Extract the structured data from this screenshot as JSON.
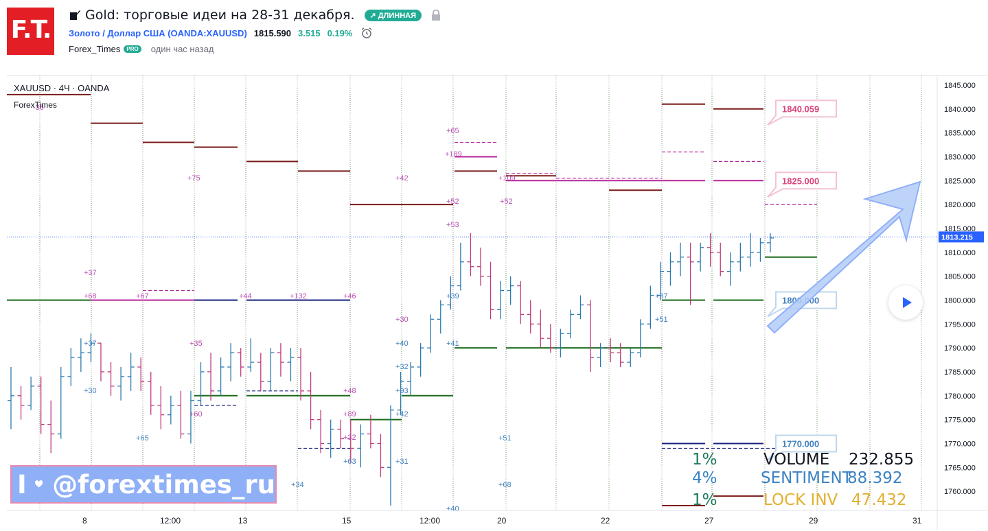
{
  "header": {
    "logo_text": "F.T.",
    "title": "Gold: торговые идеи на 28-31 декабря.",
    "badge": "↗ ДЛИННАЯ",
    "symbol_link": "Золото / Доллар США (OANDA:XAUUSD)",
    "price": "1815.590",
    "change": "3.515",
    "change_pct": "0.19%",
    "author": "Forex_Times",
    "author_badge": "PRO",
    "published": "один час назад"
  },
  "chart_data": {
    "type": "candlestick",
    "symbol_label": "XAUUSD · 4Ч · OANDA",
    "indicator_label": "ForexTimes",
    "x_tick_labels": [
      "8",
      "12:00",
      "13",
      "15",
      "12:00",
      "20",
      "22",
      "27",
      "29",
      "31"
    ],
    "y_ticks": [
      1760,
      1765,
      1770,
      1775,
      1780,
      1785,
      1790,
      1795,
      1800,
      1805,
      1810,
      1815,
      1820,
      1825,
      1830,
      1835,
      1840,
      1845
    ],
    "ylim": [
      1756,
      1847
    ],
    "last_price": "1813.215",
    "callouts": [
      "1840.059",
      "1825.000",
      "1800.000",
      "1770.000"
    ],
    "annotations_magenta": [
      "-36",
      "+75",
      "+42",
      "+65",
      "+189",
      "+109",
      "+52",
      "+52",
      "+53",
      "+37",
      "+68",
      "+67",
      "+44",
      "+132",
      "+46",
      "+30",
      "+35",
      "+48",
      "+89",
      "+32",
      "+60"
    ],
    "annotations_blue": [
      "+39",
      "+37",
      "+30",
      "+65",
      "+40",
      "+32",
      "+41",
      "+93",
      "+42",
      "+63",
      "+31",
      "+34",
      "+51",
      "+68",
      "+40",
      "+37",
      "+51"
    ],
    "candles": [
      [
        1779,
        1786,
        1773,
        1780
      ],
      [
        1780,
        1782,
        1775,
        1778
      ],
      [
        1778,
        1784,
        1777,
        1782
      ],
      [
        1782,
        1784,
        1772,
        1774
      ],
      [
        1774,
        1779,
        1768,
        1772
      ],
      [
        1772,
        1786,
        1771,
        1784
      ],
      [
        1784,
        1790,
        1782,
        1788
      ],
      [
        1788,
        1792,
        1785,
        1789
      ],
      [
        1789,
        1793,
        1787,
        1791
      ],
      [
        1791,
        1791,
        1783,
        1785
      ],
      [
        1785,
        1787,
        1780,
        1782
      ],
      [
        1782,
        1786,
        1779,
        1784
      ],
      [
        1784,
        1789,
        1781,
        1786
      ],
      [
        1786,
        1788,
        1781,
        1783
      ],
      [
        1783,
        1785,
        1776,
        1778
      ],
      [
        1778,
        1782,
        1773,
        1776
      ],
      [
        1776,
        1780,
        1774,
        1778
      ],
      [
        1778,
        1781,
        1771,
        1772
      ],
      [
        1772,
        1781,
        1770,
        1779
      ],
      [
        1779,
        1787,
        1778,
        1785
      ],
      [
        1785,
        1789,
        1779,
        1781
      ],
      [
        1781,
        1788,
        1780,
        1786
      ],
      [
        1786,
        1791,
        1783,
        1789
      ],
      [
        1789,
        1790,
        1784,
        1786
      ],
      [
        1786,
        1792,
        1785,
        1787
      ],
      [
        1787,
        1789,
        1781,
        1783
      ],
      [
        1783,
        1790,
        1781,
        1789
      ],
      [
        1789,
        1791,
        1784,
        1787
      ],
      [
        1787,
        1790,
        1783,
        1788
      ],
      [
        1788,
        1790,
        1779,
        1781
      ],
      [
        1781,
        1785,
        1773,
        1775
      ],
      [
        1775,
        1777,
        1768,
        1770
      ],
      [
        1770,
        1775,
        1767,
        1773
      ],
      [
        1773,
        1775,
        1769,
        1771
      ],
      [
        1771,
        1775,
        1766,
        1769
      ],
      [
        1769,
        1774,
        1765,
        1772
      ],
      [
        1772,
        1776,
        1769,
        1770
      ],
      [
        1770,
        1772,
        1763,
        1765
      ],
      [
        1765,
        1778,
        1757,
        1777
      ],
      [
        1777,
        1785,
        1776,
        1783
      ],
      [
        1783,
        1787,
        1780,
        1786
      ],
      [
        1786,
        1791,
        1784,
        1790
      ],
      [
        1790,
        1797,
        1789,
        1796
      ],
      [
        1796,
        1800,
        1793,
        1799
      ],
      [
        1799,
        1805,
        1798,
        1803
      ],
      [
        1803,
        1812,
        1802,
        1808
      ],
      [
        1808,
        1814,
        1805,
        1807
      ],
      [
        1807,
        1811,
        1803,
        1805
      ],
      [
        1805,
        1808,
        1796,
        1798
      ],
      [
        1798,
        1804,
        1796,
        1802
      ],
      [
        1802,
        1805,
        1799,
        1803
      ],
      [
        1803,
        1804,
        1795,
        1797
      ],
      [
        1797,
        1800,
        1793,
        1795
      ],
      [
        1795,
        1798,
        1790,
        1792
      ],
      [
        1792,
        1795,
        1789,
        1790
      ],
      [
        1790,
        1794,
        1788,
        1793
      ],
      [
        1793,
        1798,
        1792,
        1797
      ],
      [
        1797,
        1801,
        1796,
        1799
      ],
      [
        1799,
        1800,
        1785,
        1788
      ],
      [
        1788,
        1791,
        1786,
        1790
      ],
      [
        1790,
        1792,
        1787,
        1789
      ],
      [
        1789,
        1791,
        1786,
        1787
      ],
      [
        1787,
        1790,
        1786,
        1789
      ],
      [
        1789,
        1796,
        1788,
        1795
      ],
      [
        1795,
        1803,
        1794,
        1801
      ],
      [
        1801,
        1808,
        1800,
        1806
      ],
      [
        1806,
        1810,
        1803,
        1808
      ],
      [
        1808,
        1812,
        1805,
        1809
      ],
      [
        1809,
        1812,
        1799,
        1808
      ],
      [
        1808,
        1812,
        1806,
        1811
      ],
      [
        1811,
        1814,
        1807,
        1810
      ],
      [
        1810,
        1812,
        1805,
        1806
      ],
      [
        1806,
        1810,
        1803,
        1808
      ],
      [
        1808,
        1812,
        1806,
        1809
      ],
      [
        1809,
        1814,
        1807,
        1810
      ],
      [
        1810,
        1813,
        1808,
        1812
      ],
      [
        1812,
        1814,
        1810,
        1813
      ]
    ]
  },
  "stats": {
    "volume_pct": "1%",
    "volume_label": "VOLUME",
    "volume_value": "232.855",
    "sentiment_pct": "4%",
    "sentiment_label": "SENTIMENT",
    "sentiment_value": "88.392",
    "lock_pct": "1%",
    "lock_label": "LOCK INV",
    "lock_value": "47.432"
  },
  "banner": {
    "prefix": "I",
    "handle": "@forextimes_ru"
  },
  "colors": {
    "up": "#2a7ab0",
    "down": "#c0397a",
    "level_dark": "#7b1a1a",
    "level_magenta": "#b5279a",
    "level_green": "#1b6b1b",
    "level_navy": "#1a237e",
    "stat_green": "#1b7a5a",
    "stat_blue": "#3b82c4",
    "stat_gold": "#e0b030",
    "accent": "#2962ff"
  }
}
